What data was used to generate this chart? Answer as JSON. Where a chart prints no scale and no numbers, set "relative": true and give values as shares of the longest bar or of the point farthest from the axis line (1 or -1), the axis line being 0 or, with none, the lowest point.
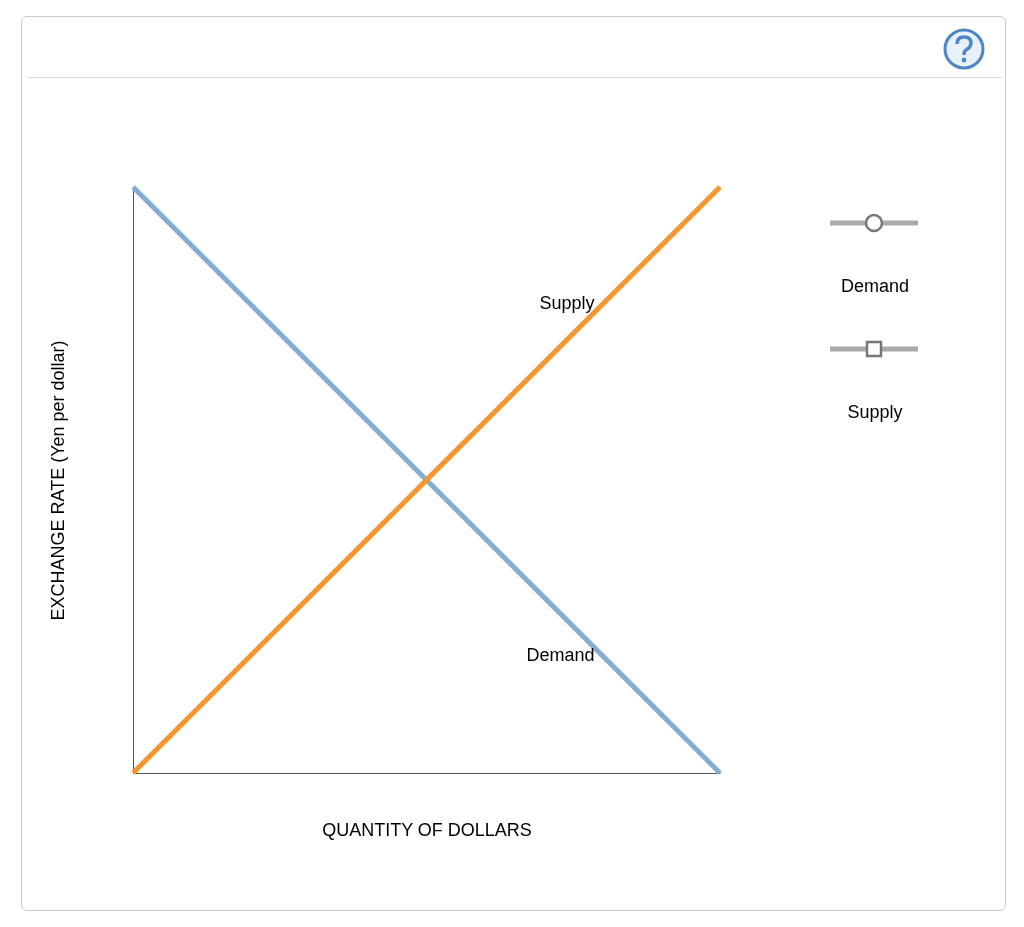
{
  "chart_data": {
    "type": "line",
    "relative": true,
    "xlabel": "QUANTITY OF DOLLARS",
    "ylabel": "EXCHANGE RATE (Yen per dollar)",
    "categories": [
      null,
      null
    ],
    "series": [
      {
        "name": "Demand",
        "color": "#86acd4",
        "values": [
          1,
          0
        ]
      },
      {
        "name": "Supply",
        "color": "#f7952e",
        "values": [
          0,
          1
        ]
      }
    ],
    "annotations": [
      "Demand",
      "Supply"
    ],
    "grid": false,
    "tick_labels": false,
    "line_style": "solid",
    "marker": "none"
  }
}
